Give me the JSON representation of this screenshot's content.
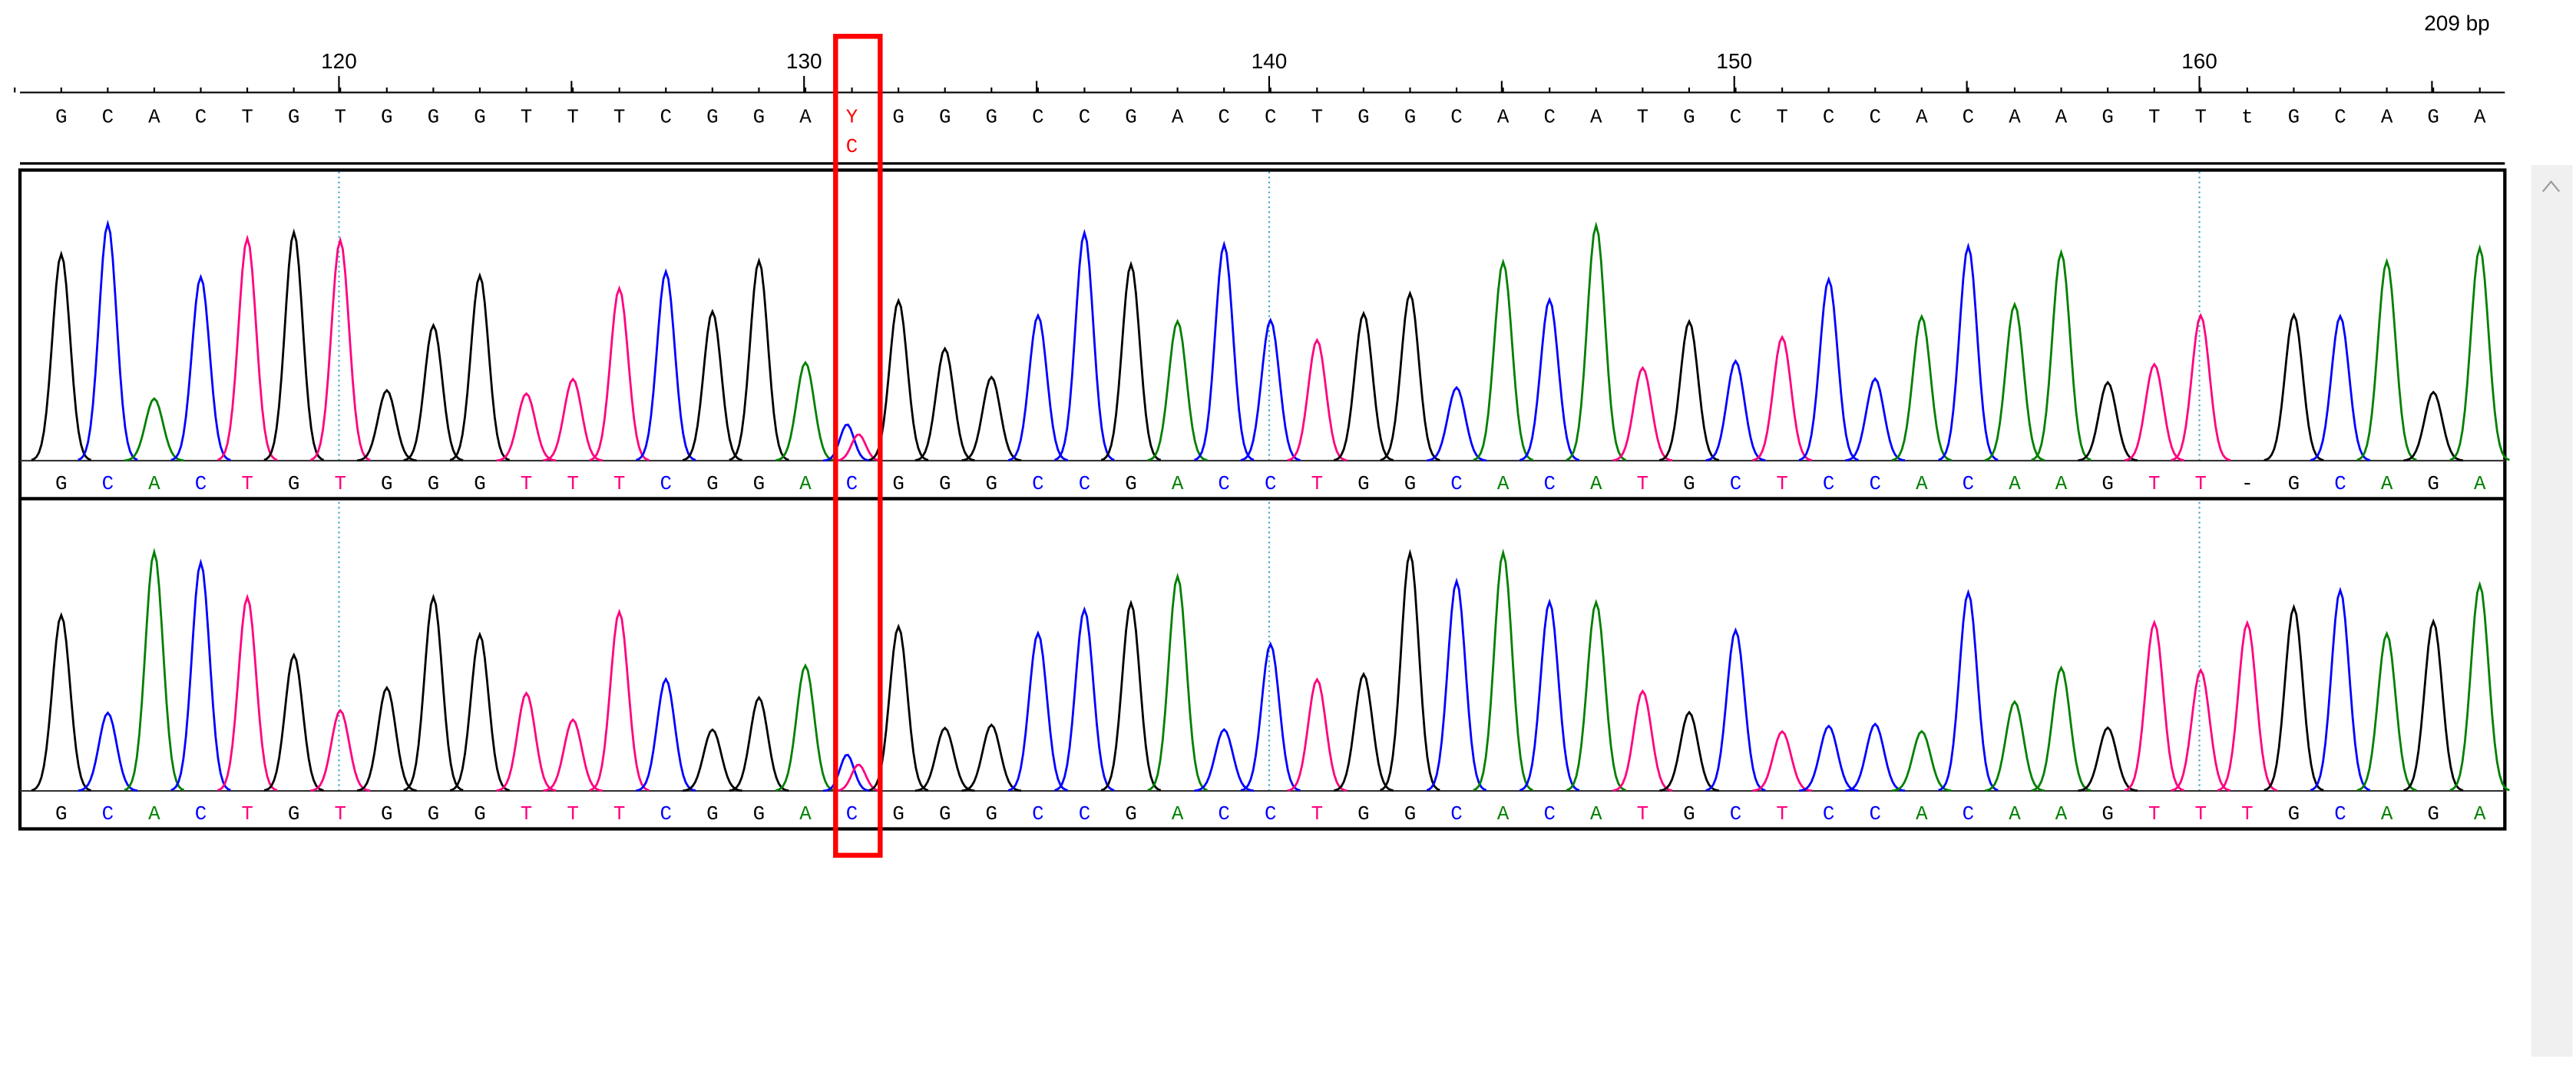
{
  "ruler": {
    "ticks": [
      120,
      130,
      140,
      150,
      160
    ],
    "length_label": "209 bp"
  },
  "base_colors": {
    "A": "#008000",
    "C": "#0000ff",
    "G": "#000000",
    "T": "#ff0080"
  },
  "consensus": {
    "bases": [
      "G",
      "C",
      "A",
      "C",
      "T",
      "G",
      "T",
      "G",
      "G",
      "G",
      "T",
      "T",
      "T",
      "C",
      "G",
      "G",
      "A",
      "Y",
      "G",
      "G",
      "G",
      "C",
      "C",
      "G",
      "A",
      "C",
      "C",
      "T",
      "G",
      "G",
      "C",
      "A",
      "C",
      "A",
      "T",
      "G",
      "C",
      "T",
      "C",
      "C",
      "A",
      "C",
      "A",
      "A",
      "G",
      "T",
      "T",
      "t",
      "G",
      "C",
      "A",
      "G",
      "A"
    ],
    "variant": {
      "base": "Y",
      "alternate": "C",
      "color": "#ff0000"
    }
  },
  "traces": [
    {
      "bases": [
        "G",
        "C",
        "A",
        "C",
        "T",
        "G",
        "T",
        "G",
        "G",
        "G",
        "T",
        "T",
        "T",
        "C",
        "G",
        "G",
        "A",
        "C",
        "G",
        "G",
        "G",
        "C",
        "C",
        "G",
        "A",
        "C",
        "C",
        "T",
        "G",
        "G",
        "C",
        "A",
        "C",
        "A",
        "T",
        "G",
        "C",
        "T",
        "C",
        "C",
        "A",
        "C",
        "A",
        "A",
        "G",
        "T",
        "T",
        "-",
        "G",
        "C",
        "A",
        "G",
        "A"
      ]
    },
    {
      "bases": [
        "G",
        "C",
        "A",
        "C",
        "T",
        "G",
        "T",
        "G",
        "G",
        "G",
        "T",
        "T",
        "T",
        "C",
        "G",
        "G",
        "A",
        "C",
        "G",
        "G",
        "G",
        "C",
        "C",
        "G",
        "A",
        "C",
        "C",
        "T",
        "G",
        "G",
        "C",
        "A",
        "C",
        "A",
        "T",
        "G",
        "C",
        "T",
        "C",
        "C",
        "A",
        "C",
        "A",
        "A",
        "G",
        "T",
        "T",
        "T",
        "G",
        "C",
        "A",
        "G",
        "A"
      ]
    }
  ]
}
